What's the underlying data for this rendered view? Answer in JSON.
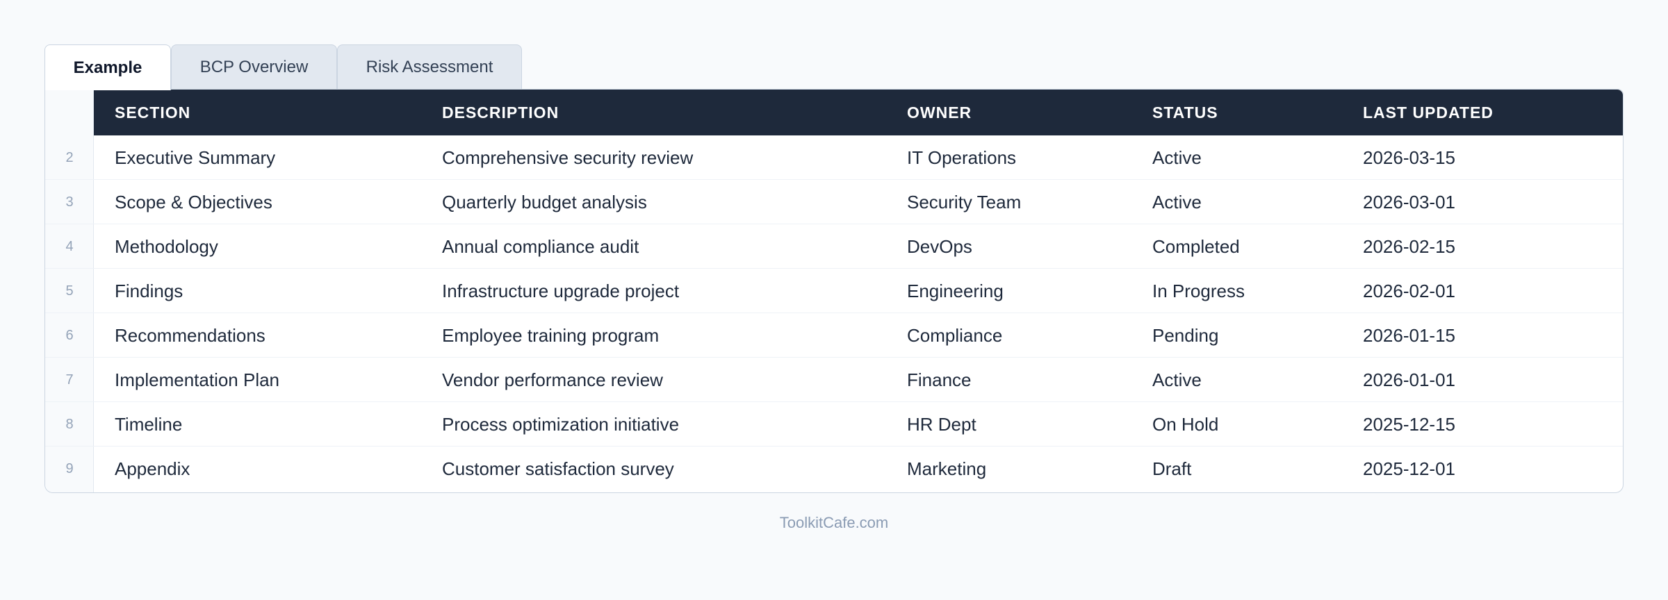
{
  "tabs": [
    {
      "label": "Example",
      "active": true
    },
    {
      "label": "BCP Overview",
      "active": false
    },
    {
      "label": "Risk Assessment",
      "active": false
    }
  ],
  "table": {
    "columns": [
      "SECTION",
      "DESCRIPTION",
      "OWNER",
      "STATUS",
      "LAST UPDATED"
    ],
    "rows": [
      {
        "num": "2",
        "section": "Executive Summary",
        "description": "Comprehensive security review",
        "owner": "IT Operations",
        "status": "Active",
        "updated": "2026-03-15"
      },
      {
        "num": "3",
        "section": "Scope & Objectives",
        "description": "Quarterly budget analysis",
        "owner": "Security Team",
        "status": "Active",
        "updated": "2026-03-01"
      },
      {
        "num": "4",
        "section": "Methodology",
        "description": "Annual compliance audit",
        "owner": "DevOps",
        "status": "Completed",
        "updated": "2026-02-15"
      },
      {
        "num": "5",
        "section": "Findings",
        "description": "Infrastructure upgrade project",
        "owner": "Engineering",
        "status": "In Progress",
        "updated": "2026-02-01"
      },
      {
        "num": "6",
        "section": "Recommendations",
        "description": "Employee training program",
        "owner": "Compliance",
        "status": "Pending",
        "updated": "2026-01-15"
      },
      {
        "num": "7",
        "section": "Implementation Plan",
        "description": "Vendor performance review",
        "owner": "Finance",
        "status": "Active",
        "updated": "2026-01-01"
      },
      {
        "num": "8",
        "section": "Timeline",
        "description": "Process optimization initiative",
        "owner": "HR Dept",
        "status": "On Hold",
        "updated": "2025-12-15"
      },
      {
        "num": "9",
        "section": "Appendix",
        "description": "Customer satisfaction survey",
        "owner": "Marketing",
        "status": "Draft",
        "updated": "2025-12-01"
      }
    ]
  },
  "footer": {
    "text": "ToolkitCafe.com"
  }
}
